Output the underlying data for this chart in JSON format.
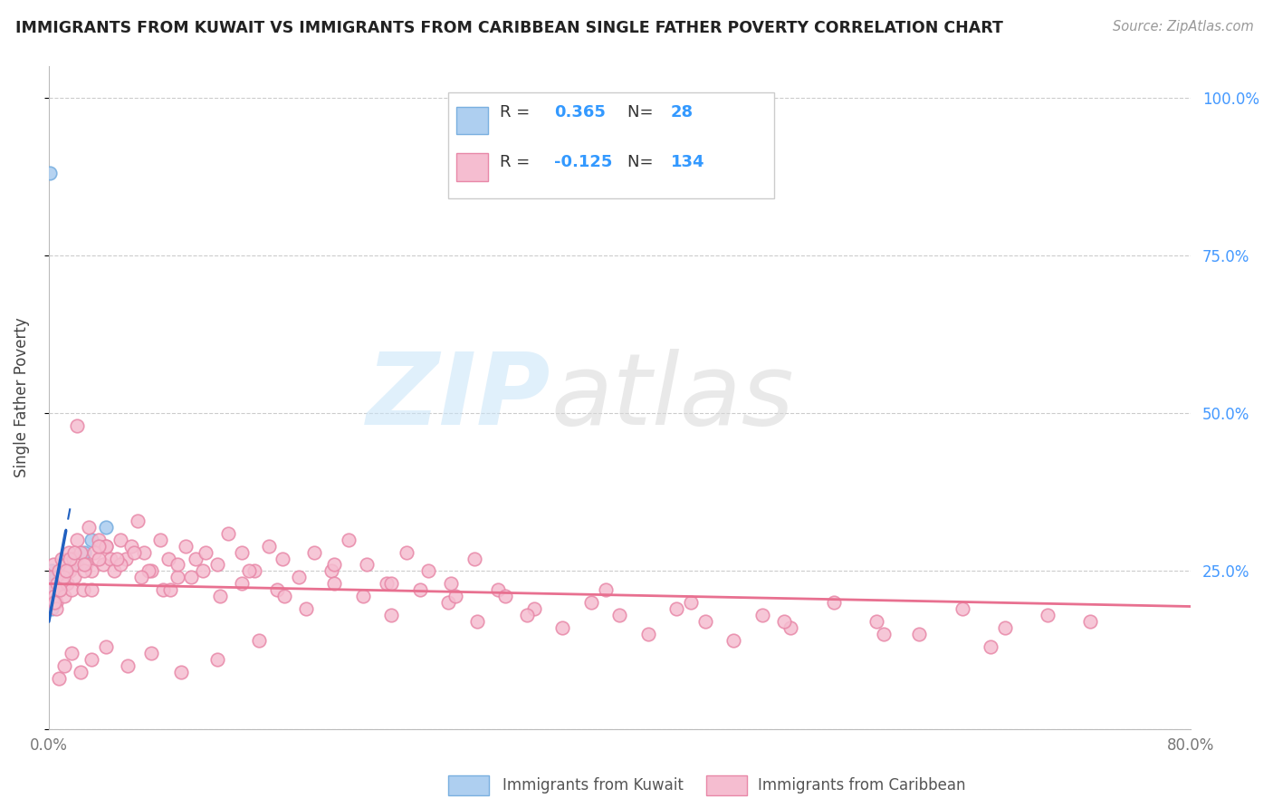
{
  "title": "IMMIGRANTS FROM KUWAIT VS IMMIGRANTS FROM CARIBBEAN SINGLE FATHER POVERTY CORRELATION CHART",
  "source": "Source: ZipAtlas.com",
  "ylabel": "Single Father Poverty",
  "xlim": [
    0.0,
    0.8
  ],
  "ylim": [
    0.0,
    1.05
  ],
  "yticks": [
    0.0,
    0.25,
    0.5,
    0.75,
    1.0
  ],
  "yticklabels": [
    "",
    "25.0%",
    "50.0%",
    "75.0%",
    "100.0%"
  ],
  "xtick_positions": [
    0.0,
    0.8
  ],
  "xticklabels": [
    "0.0%",
    "80.0%"
  ],
  "kuwait_color": "#aecff0",
  "kuwait_edge": "#7ab0e0",
  "caribbean_color": "#f5bdd0",
  "caribbean_edge": "#e888a8",
  "trendline_kuwait_color": "#2060c0",
  "trendline_caribbean_color": "#e87090",
  "R_kuwait": 0.365,
  "N_kuwait": 28,
  "R_caribbean": -0.125,
  "N_caribbean": 134,
  "legend_label_kuwait": "Immigrants from Kuwait",
  "legend_label_caribbean": "Immigrants from Caribbean",
  "kuwait_x": [
    0.001,
    0.001,
    0.001,
    0.002,
    0.002,
    0.002,
    0.002,
    0.003,
    0.003,
    0.003,
    0.004,
    0.004,
    0.005,
    0.005,
    0.006,
    0.007,
    0.008,
    0.009,
    0.01,
    0.011,
    0.012,
    0.015,
    0.018,
    0.02,
    0.025,
    0.03,
    0.04,
    0.001
  ],
  "kuwait_y": [
    0.2,
    0.22,
    0.24,
    0.19,
    0.21,
    0.23,
    0.25,
    0.2,
    0.22,
    0.24,
    0.21,
    0.23,
    0.22,
    0.24,
    0.23,
    0.23,
    0.24,
    0.25,
    0.24,
    0.26,
    0.25,
    0.26,
    0.27,
    0.26,
    0.28,
    0.3,
    0.32,
    0.88
  ],
  "caribbean_x": [
    0.001,
    0.002,
    0.003,
    0.004,
    0.005,
    0.006,
    0.007,
    0.008,
    0.009,
    0.01,
    0.011,
    0.012,
    0.013,
    0.014,
    0.015,
    0.016,
    0.017,
    0.018,
    0.019,
    0.02,
    0.022,
    0.024,
    0.026,
    0.028,
    0.03,
    0.032,
    0.035,
    0.038,
    0.04,
    0.043,
    0.046,
    0.05,
    0.054,
    0.058,
    0.062,
    0.067,
    0.072,
    0.078,
    0.084,
    0.09,
    0.096,
    0.103,
    0.11,
    0.118,
    0.126,
    0.135,
    0.144,
    0.154,
    0.164,
    0.175,
    0.186,
    0.198,
    0.21,
    0.223,
    0.237,
    0.251,
    0.266,
    0.282,
    0.298,
    0.315,
    0.01,
    0.015,
    0.02,
    0.025,
    0.03,
    0.035,
    0.04,
    0.05,
    0.06,
    0.07,
    0.08,
    0.09,
    0.1,
    0.12,
    0.14,
    0.16,
    0.18,
    0.2,
    0.22,
    0.24,
    0.26,
    0.28,
    0.3,
    0.32,
    0.34,
    0.36,
    0.38,
    0.4,
    0.42,
    0.44,
    0.46,
    0.48,
    0.5,
    0.52,
    0.55,
    0.58,
    0.61,
    0.64,
    0.67,
    0.7,
    0.005,
    0.008,
    0.012,
    0.018,
    0.025,
    0.035,
    0.048,
    0.065,
    0.085,
    0.108,
    0.135,
    0.165,
    0.2,
    0.24,
    0.285,
    0.335,
    0.39,
    0.45,
    0.515,
    0.585,
    0.66,
    0.73,
    0.004,
    0.007,
    0.011,
    0.016,
    0.022,
    0.03,
    0.04,
    0.055,
    0.072,
    0.093,
    0.118,
    0.147
  ],
  "caribbean_y": [
    0.22,
    0.24,
    0.26,
    0.21,
    0.2,
    0.23,
    0.25,
    0.22,
    0.27,
    0.24,
    0.21,
    0.26,
    0.23,
    0.28,
    0.25,
    0.22,
    0.27,
    0.24,
    0.26,
    0.48,
    0.28,
    0.22,
    0.26,
    0.32,
    0.25,
    0.28,
    0.3,
    0.26,
    0.29,
    0.27,
    0.25,
    0.3,
    0.27,
    0.29,
    0.33,
    0.28,
    0.25,
    0.3,
    0.27,
    0.24,
    0.29,
    0.27,
    0.28,
    0.26,
    0.31,
    0.28,
    0.25,
    0.29,
    0.27,
    0.24,
    0.28,
    0.25,
    0.3,
    0.26,
    0.23,
    0.28,
    0.25,
    0.23,
    0.27,
    0.22,
    0.24,
    0.27,
    0.3,
    0.25,
    0.22,
    0.27,
    0.29,
    0.26,
    0.28,
    0.25,
    0.22,
    0.26,
    0.24,
    0.21,
    0.25,
    0.22,
    0.19,
    0.23,
    0.21,
    0.18,
    0.22,
    0.2,
    0.17,
    0.21,
    0.19,
    0.16,
    0.2,
    0.18,
    0.15,
    0.19,
    0.17,
    0.14,
    0.18,
    0.16,
    0.2,
    0.17,
    0.15,
    0.19,
    0.16,
    0.18,
    0.19,
    0.22,
    0.25,
    0.28,
    0.26,
    0.29,
    0.27,
    0.24,
    0.22,
    0.25,
    0.23,
    0.21,
    0.26,
    0.23,
    0.21,
    0.18,
    0.22,
    0.2,
    0.17,
    0.15,
    0.13,
    0.17,
    0.2,
    0.08,
    0.1,
    0.12,
    0.09,
    0.11,
    0.13,
    0.1,
    0.12,
    0.09,
    0.11,
    0.14
  ]
}
